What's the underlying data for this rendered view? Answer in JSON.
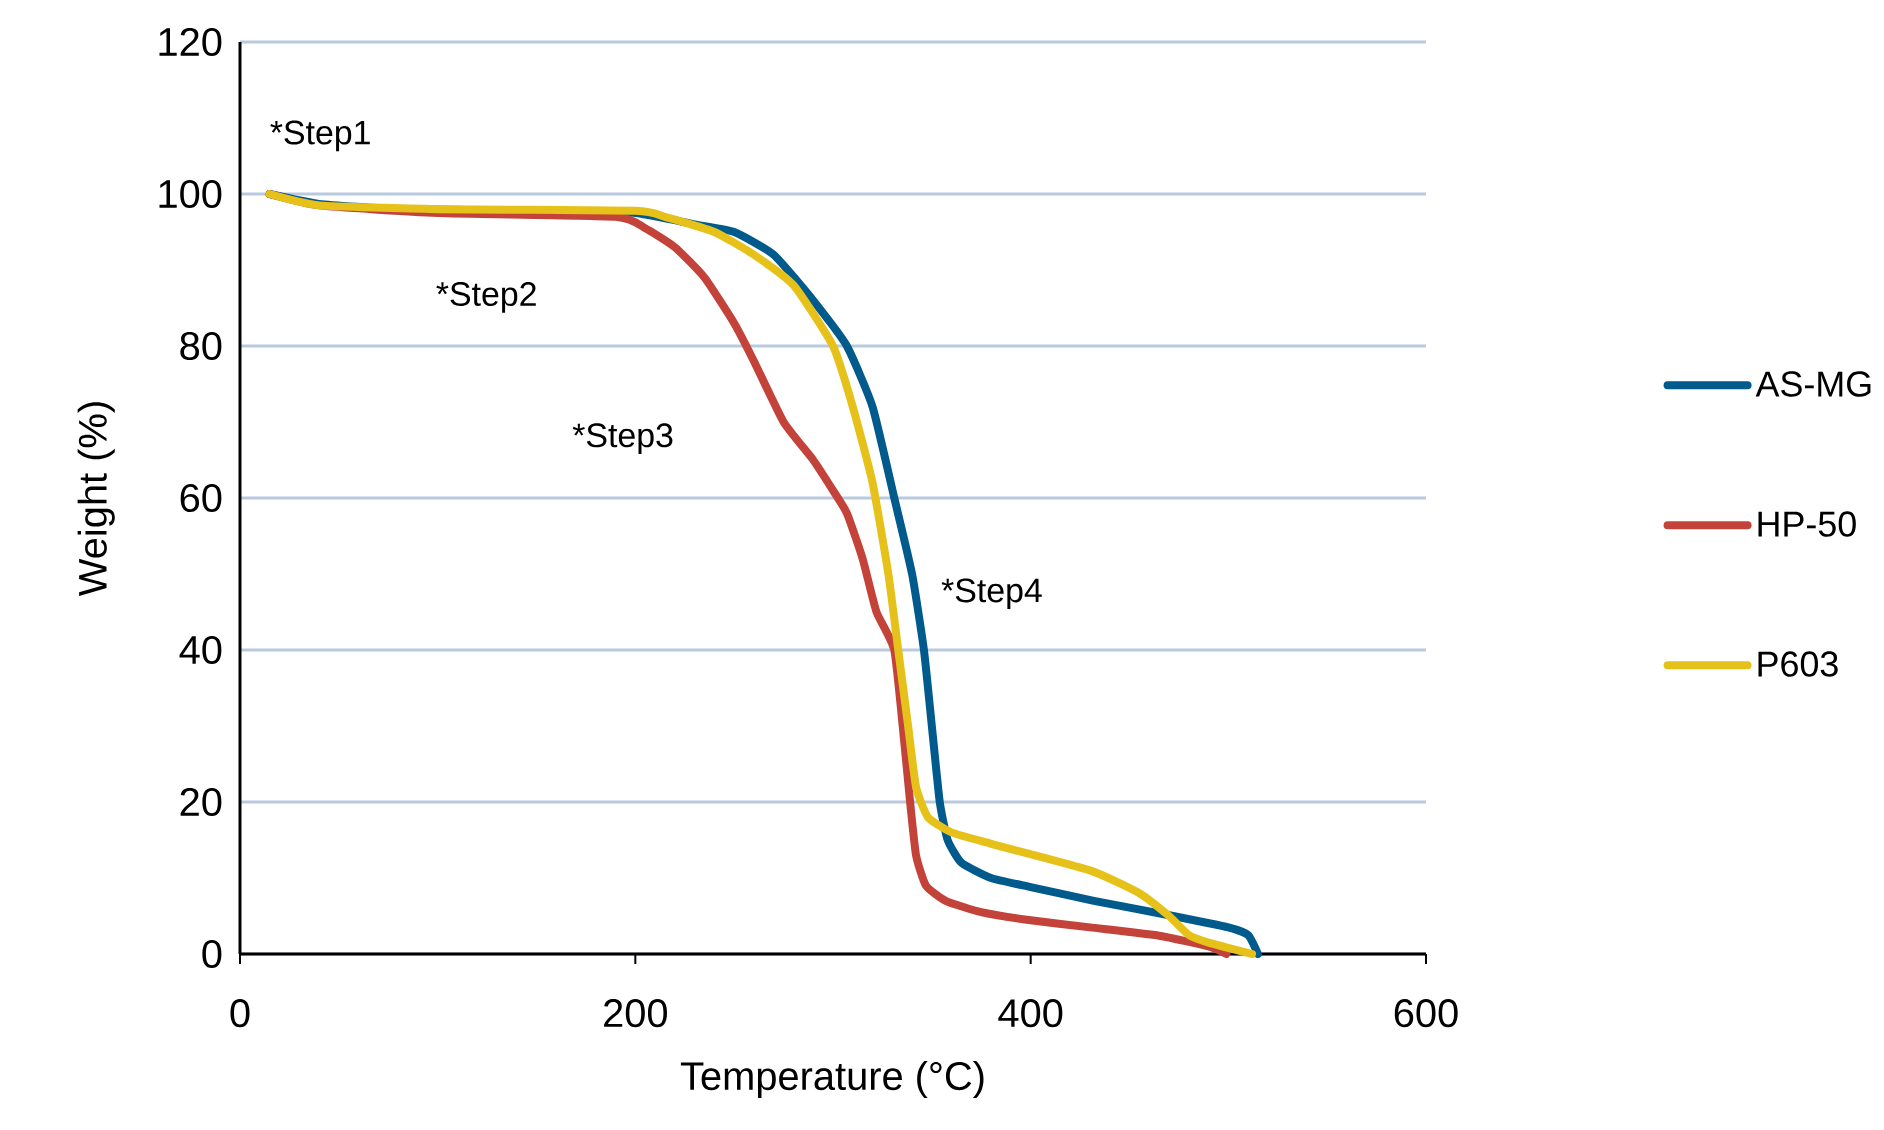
{
  "chart_data": {
    "type": "line",
    "xlabel": "Temperature (°C)",
    "ylabel": "Weight (%)",
    "xlim": [
      0,
      600
    ],
    "xticks": [
      0,
      200,
      400,
      600
    ],
    "ylim": [
      0,
      120
    ],
    "yticks": [
      0,
      20,
      40,
      60,
      80,
      100,
      120
    ],
    "grid": "y",
    "legend": "right",
    "marker": "none",
    "line_style": "solid",
    "annotations": [
      "*Step1",
      "*Step2",
      "*Step3",
      "*Step4"
    ],
    "series": [
      {
        "name": "AS-MG",
        "color": "#005a8c",
        "x": [
          15,
          40,
          80,
          150,
          200,
          230,
          250,
          270,
          290,
          307,
          320,
          331,
          340,
          346,
          350,
          354,
          358,
          365,
          380,
          400,
          432,
          472,
          500,
          510,
          515
        ],
        "values": [
          100,
          98.7,
          98,
          97.8,
          97.5,
          96,
          95,
          92,
          86,
          80,
          72,
          60,
          50,
          40,
          30,
          20,
          15,
          12,
          10,
          8.8,
          7,
          5,
          3.5,
          2.5,
          0
        ]
      },
      {
        "name": "HP-50",
        "color": "#c3423a",
        "x": [
          15,
          40,
          100,
          190,
          205,
          220,
          235,
          250,
          260,
          275,
          290,
          300,
          307,
          315,
          322,
          331,
          336,
          339,
          342,
          347,
          357,
          375,
          398,
          430,
          465,
          490,
          499
        ],
        "values": [
          100,
          98.5,
          97.5,
          97,
          95.5,
          93,
          89,
          83,
          78,
          70,
          65,
          61,
          58,
          52,
          45,
          40,
          28,
          20,
          13,
          9,
          7,
          5.5,
          4.5,
          3.5,
          2.4,
          1,
          0
        ]
      },
      {
        "name": "P603",
        "color": "#e6c11a",
        "x": [
          15,
          40,
          100,
          200,
          215,
          240,
          260,
          280,
          300,
          310,
          320,
          328,
          333,
          338,
          342,
          348,
          360,
          380,
          430,
          455,
          470,
          480,
          490,
          512
        ],
        "values": [
          100,
          98.5,
          98,
          97.8,
          97,
          95,
          92,
          88,
          80,
          72,
          62,
          50,
          40,
          30,
          22,
          18,
          16,
          14.5,
          11,
          8,
          5,
          2.5,
          1.5,
          0
        ]
      }
    ]
  }
}
